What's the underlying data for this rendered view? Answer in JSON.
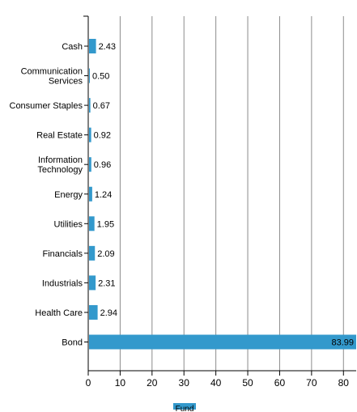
{
  "chart_data": {
    "type": "bar",
    "orientation": "horizontal",
    "categories": [
      [
        "Cash"
      ],
      [
        "Communication",
        "Services"
      ],
      [
        "Consumer Staples"
      ],
      [
        "Real Estate"
      ],
      [
        "Information",
        "Technology"
      ],
      [
        "Energy"
      ],
      [
        "Utilities"
      ],
      [
        "Financials"
      ],
      [
        "Industrials"
      ],
      [
        "Health Care"
      ],
      [
        "Bond"
      ]
    ],
    "series": [
      {
        "name": "Fund",
        "color": "#3399cc",
        "values": [
          2.43,
          0.5,
          0.67,
          0.92,
          0.96,
          1.24,
          1.95,
          2.09,
          2.31,
          2.94,
          83.99
        ],
        "labels": [
          "2.43",
          "0.50",
          "0.67",
          "0.92",
          "0.96",
          "1.24",
          "1.95",
          "2.09",
          "2.31",
          "2.94",
          "83.99"
        ]
      }
    ],
    "xlim": [
      0,
      83.99
    ],
    "xticks": [
      0,
      10,
      20,
      30,
      40,
      50,
      60,
      70,
      80
    ],
    "grid": "vertical",
    "legend_position": "bottom-center",
    "title": "",
    "xlabel": "",
    "ylabel": ""
  }
}
